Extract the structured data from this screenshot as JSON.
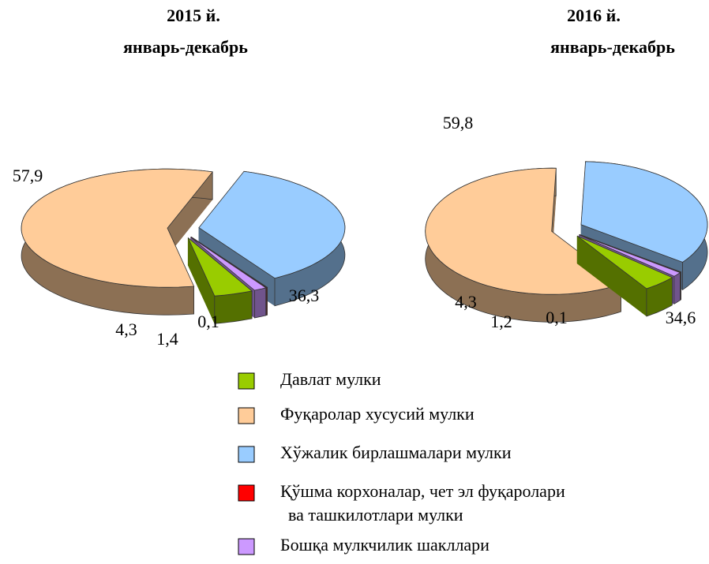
{
  "chart_data": [
    {
      "type": "pie",
      "title": "2015 й.",
      "subtitle": "январь-декабрь",
      "values": [
        4.3,
        57.9,
        36.3,
        0.1,
        1.4
      ],
      "value_labels": [
        "4,3",
        "57,9",
        "36,3",
        "0,1",
        "1,4"
      ]
    },
    {
      "type": "pie",
      "title": "2016 й.",
      "subtitle": "январь-декабрь",
      "values": [
        4.3,
        59.8,
        34.6,
        0.1,
        1.2
      ],
      "value_labels": [
        "4,3",
        "59,8",
        "34,6",
        "0,1",
        "1,2"
      ]
    }
  ],
  "legend": {
    "items": [
      {
        "name": [
          "Давлат мулки"
        ],
        "color": "#99cc00"
      },
      {
        "name": [
          "Фуқаролар хусусий мулки"
        ],
        "color": "#ffcc99"
      },
      {
        "name": [
          "Хўжалик бирлашмалари мулки"
        ],
        "color": "#99ccff"
      },
      {
        "name": [
          "Қўшма корхоналар, чет эл фуқаролари",
          "ва ташкилотлари мулки"
        ],
        "color": "#ff0000"
      },
      {
        "name": [
          "Бошқа мулкчилик шакллари"
        ],
        "color": "#cc99ff"
      }
    ]
  }
}
